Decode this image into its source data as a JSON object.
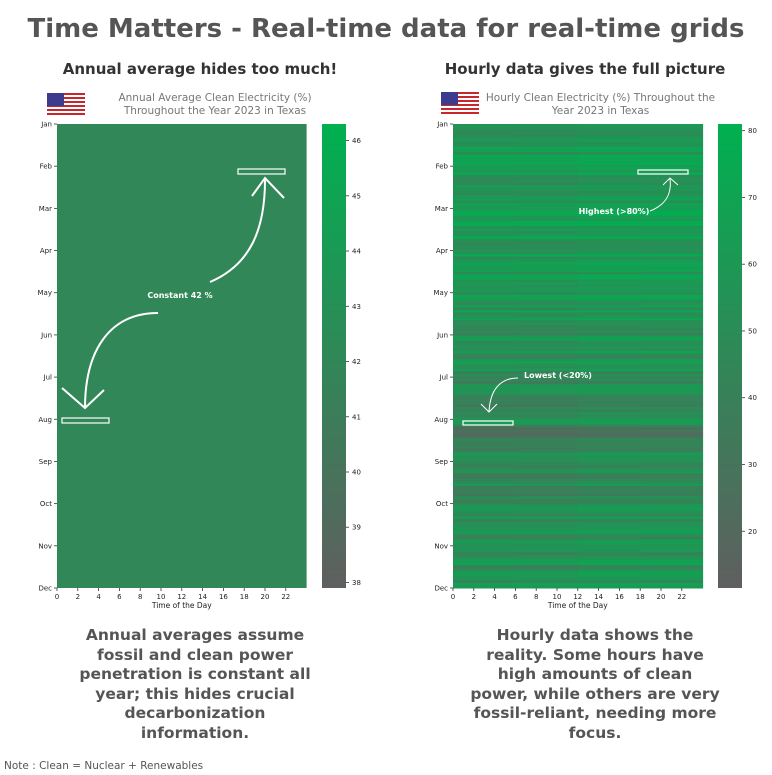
{
  "title": "Time Matters - Real-time data for real-time grids",
  "note": "Note : Clean = Nuclear + Renewables",
  "left": {
    "subtitle": "Annual average hides too much!",
    "description": "Annual averages assume fossil and clean power penetration is constant all year; this hides crucial decarbonization information."
  },
  "right": {
    "subtitle": "Hourly data gives the full picture",
    "description": "Hourly data shows the reality. Some hours have high amounts of clean power, while others are very fossil-reliant, needing more focus."
  },
  "colors": {
    "low": "#5f5f5f",
    "high": "#00b050",
    "annotation": "#ffffff"
  },
  "icons": {
    "flag": "us-flag-icon"
  },
  "chart_data": [
    {
      "type": "heatmap",
      "title": "Annual Average Clean Electricity (%) Throughout the Year 2023 in Texas",
      "xlabel": "Time of the Day",
      "ylabel": "",
      "x_ticks": [
        "0",
        "2",
        "4",
        "6",
        "8",
        "10",
        "12",
        "14",
        "16",
        "18",
        "20",
        "22"
      ],
      "y_ticks": [
        "Jan",
        "Feb",
        "Mar",
        "Apr",
        "May",
        "Jun",
        "Jul",
        "Aug",
        "Sep",
        "Oct",
        "Nov",
        "Dec"
      ],
      "colorbar_ticks": [
        "46",
        "45",
        "44",
        "43",
        "42",
        "41",
        "40",
        "39",
        "38"
      ],
      "colorbar_range": [
        37.9,
        46.3
      ],
      "constant_value": 42,
      "annotations": [
        {
          "text": "Constant 42 %"
        }
      ]
    },
    {
      "type": "heatmap",
      "title": "Hourly Clean Electricity (%) Throughout the Year 2023 in Texas",
      "xlabel": "Time of the Day",
      "ylabel": "",
      "x_ticks": [
        "0",
        "2",
        "4",
        "6",
        "8",
        "10",
        "12",
        "14",
        "16",
        "18",
        "20",
        "22"
      ],
      "y_ticks": [
        "Jan",
        "Feb",
        "Mar",
        "Apr",
        "May",
        "Jun",
        "Jul",
        "Aug",
        "Sep",
        "Oct",
        "Nov",
        "Dec"
      ],
      "colorbar_ticks": [
        "80",
        "70",
        "60",
        "50",
        "40",
        "30",
        "20"
      ],
      "colorbar_range": [
        11.5,
        81
      ],
      "annotations": [
        {
          "text": "Highest (>80%)"
        },
        {
          "text": "Lowest (<20%)"
        }
      ]
    }
  ]
}
